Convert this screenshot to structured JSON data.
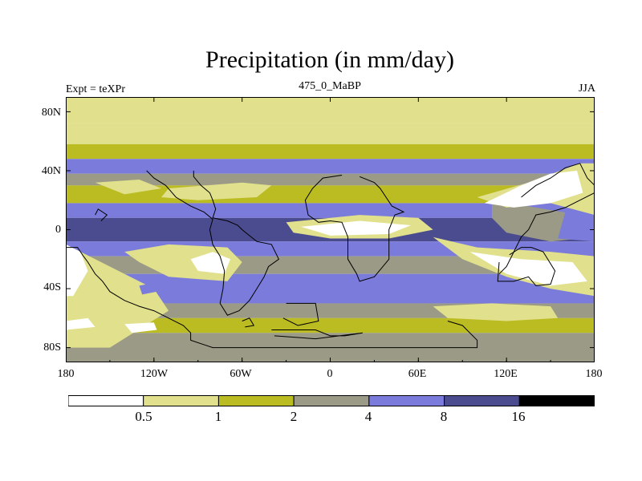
{
  "chart_data": {
    "type": "heatmap",
    "title": "Precipitation (in mm/day)",
    "left_label": "Expt = teXPr",
    "center_label": "475_0_MaBP",
    "right_label": "JJA",
    "x_ticks": [
      "180",
      "120W",
      "60W",
      "0",
      "60E",
      "120E",
      "180"
    ],
    "y_ticks": [
      "80N",
      "40N",
      "0",
      "40S",
      "80S"
    ],
    "xlim": [
      -180,
      180
    ],
    "ylim": [
      -90,
      90
    ],
    "levels": [
      "0.5",
      "1",
      "2",
      "4",
      "8",
      "16"
    ],
    "colors": [
      "#ffffff",
      "#e1e08c",
      "#bbbb22",
      "#9a9a86",
      "#7b7bdb",
      "#4b4b8f",
      "#000000"
    ],
    "zonal_bands": [
      {
        "lat_min": 72,
        "lat_max": 90,
        "class": 1
      },
      {
        "lat_min": 58,
        "lat_max": 72,
        "class": 1
      },
      {
        "lat_min": 48,
        "lat_max": 58,
        "class": 2
      },
      {
        "lat_min": 38,
        "lat_max": 48,
        "class": 4
      },
      {
        "lat_min": 30,
        "lat_max": 38,
        "class": 3
      },
      {
        "lat_min": 18,
        "lat_max": 30,
        "class": 2
      },
      {
        "lat_min": 8,
        "lat_max": 18,
        "class": 4
      },
      {
        "lat_min": -8,
        "lat_max": 8,
        "class": 5
      },
      {
        "lat_min": -18,
        "lat_max": -8,
        "class": 4
      },
      {
        "lat_min": -30,
        "lat_max": -18,
        "class": 3
      },
      {
        "lat_min": -50,
        "lat_max": -30,
        "class": 4
      },
      {
        "lat_min": -60,
        "lat_max": -50,
        "class": 3
      },
      {
        "lat_min": -70,
        "lat_max": -60,
        "class": 2
      },
      {
        "lat_min": -90,
        "lat_max": -70,
        "class": 3
      }
    ],
    "regions": [
      {
        "class": 1,
        "points": [
          [
            -180,
            -10
          ],
          [
            -150,
            -25
          ],
          [
            -120,
            -40
          ],
          [
            -110,
            -55
          ],
          [
            -150,
            -80
          ],
          [
            -180,
            -80
          ]
        ]
      },
      {
        "class": 0,
        "points": [
          [
            -180,
            -10
          ],
          [
            -170,
            -15
          ],
          [
            -165,
            -28
          ],
          [
            -175,
            -45
          ],
          [
            -180,
            -45
          ]
        ]
      },
      {
        "class": 0,
        "points": [
          [
            -180,
            -62
          ],
          [
            -165,
            -60
          ],
          [
            -160,
            -66
          ],
          [
            -180,
            -68
          ]
        ]
      },
      {
        "class": 1,
        "points": [
          [
            -140,
            -15
          ],
          [
            -110,
            -10
          ],
          [
            -70,
            -12
          ],
          [
            -60,
            -22
          ],
          [
            -70,
            -35
          ],
          [
            -110,
            -32
          ],
          [
            -130,
            -22
          ]
        ]
      },
      {
        "class": 0,
        "points": [
          [
            -95,
            -20
          ],
          [
            -80,
            -15
          ],
          [
            -68,
            -20
          ],
          [
            -72,
            -30
          ],
          [
            -90,
            -28
          ]
        ]
      },
      {
        "class": 1,
        "points": [
          [
            -30,
            5
          ],
          [
            20,
            10
          ],
          [
            60,
            8
          ],
          [
            70,
            0
          ],
          [
            40,
            -6
          ],
          [
            0,
            -6
          ],
          [
            -25,
            -2
          ]
        ]
      },
      {
        "class": 0,
        "points": [
          [
            -20,
            2
          ],
          [
            20,
            6
          ],
          [
            55,
            3
          ],
          [
            40,
            -3
          ],
          [
            0,
            -4
          ]
        ]
      },
      {
        "class": 3,
        "points": [
          [
            110,
            20
          ],
          [
            140,
            15
          ],
          [
            170,
            10
          ],
          [
            180,
            5
          ],
          [
            180,
            -5
          ],
          [
            150,
            -8
          ],
          [
            120,
            -2
          ],
          [
            110,
            8
          ]
        ]
      },
      {
        "class": 4,
        "points": [
          [
            160,
            12
          ],
          [
            180,
            12
          ],
          [
            180,
            -8
          ],
          [
            155,
            -6
          ]
        ]
      },
      {
        "class": 1,
        "points": [
          [
            100,
            22
          ],
          [
            135,
            32
          ],
          [
            170,
            45
          ],
          [
            180,
            45
          ],
          [
            180,
            10
          ],
          [
            150,
            18
          ],
          [
            120,
            15
          ]
        ]
      },
      {
        "class": 0,
        "points": [
          [
            105,
            18
          ],
          [
            130,
            30
          ],
          [
            150,
            38
          ],
          [
            168,
            40
          ],
          [
            172,
            25
          ],
          [
            150,
            18
          ],
          [
            125,
            15
          ]
        ]
      },
      {
        "class": 1,
        "points": [
          [
            70,
            -5
          ],
          [
            100,
            -12
          ],
          [
            150,
            -15
          ],
          [
            180,
            -18
          ],
          [
            180,
            -45
          ],
          [
            150,
            -40
          ],
          [
            120,
            -32
          ],
          [
            90,
            -20
          ]
        ]
      },
      {
        "class": 0,
        "points": [
          [
            95,
            -15
          ],
          [
            130,
            -20
          ],
          [
            165,
            -22
          ],
          [
            175,
            -35
          ],
          [
            150,
            -38
          ],
          [
            120,
            -30
          ]
        ]
      },
      {
        "class": 1,
        "points": [
          [
            -110,
            28
          ],
          [
            -60,
            32
          ],
          [
            -40,
            30
          ],
          [
            -50,
            22
          ],
          [
            -90,
            20
          ],
          [
            -115,
            22
          ]
        ]
      },
      {
        "class": 1,
        "points": [
          [
            -160,
            32
          ],
          [
            -130,
            34
          ],
          [
            -115,
            28
          ],
          [
            -140,
            24
          ]
        ]
      },
      {
        "class": 1,
        "points": [
          [
            70,
            -52
          ],
          [
            110,
            -50
          ],
          [
            150,
            -52
          ],
          [
            155,
            -60
          ],
          [
            120,
            -62
          ],
          [
            80,
            -60
          ]
        ]
      },
      {
        "class": 0,
        "points": [
          [
            -140,
            -64
          ],
          [
            -120,
            -63
          ],
          [
            -118,
            -68
          ],
          [
            -135,
            -70
          ]
        ]
      },
      {
        "class": 4,
        "points": [
          [
            -130,
            -38
          ],
          [
            -120,
            -36
          ],
          [
            -118,
            -42
          ],
          [
            -128,
            -44
          ]
        ]
      },
      {
        "class": 4,
        "points": [
          [
            50,
            -38
          ],
          [
            60,
            -36
          ],
          [
            62,
            -42
          ],
          [
            52,
            -44
          ]
        ]
      }
    ],
    "coastlines": [
      [
        [
          -93,
          40
        ],
        [
          -93,
          36
        ],
        [
          -88,
          30
        ],
        [
          -82,
          25
        ],
        [
          -80,
          20
        ],
        [
          -78,
          14
        ],
        [
          -80,
          8
        ],
        [
          -70,
          6
        ],
        [
          -63,
          3
        ],
        [
          -60,
          0
        ],
        [
          -55,
          -4
        ],
        [
          -50,
          -8
        ],
        [
          -40,
          -10
        ],
        [
          -35,
          -20
        ],
        [
          -42,
          -25
        ],
        [
          -45,
          -32
        ],
        [
          -50,
          -40
        ],
        [
          -55,
          -48
        ],
        [
          -62,
          -55
        ],
        [
          -70,
          -58
        ],
        [
          -75,
          -50
        ],
        [
          -73,
          -40
        ],
        [
          -72,
          -28
        ],
        [
          -75,
          -18
        ],
        [
          -80,
          -10
        ],
        [
          -82,
          0
        ],
        [
          -80,
          7
        ],
        [
          -86,
          12
        ],
        [
          -95,
          16
        ],
        [
          -105,
          22
        ],
        [
          -112,
          30
        ],
        [
          -120,
          35
        ],
        [
          -125,
          40
        ]
      ],
      [
        [
          20,
          36
        ],
        [
          30,
          32
        ],
        [
          34,
          28
        ],
        [
          42,
          16
        ],
        [
          50,
          12
        ],
        [
          44,
          10
        ],
        [
          40,
          0
        ],
        [
          40,
          -10
        ],
        [
          40,
          -20
        ],
        [
          35,
          -26
        ],
        [
          30,
          -32
        ],
        [
          20,
          -35
        ],
        [
          18,
          -30
        ],
        [
          12,
          -20
        ],
        [
          12,
          -5
        ],
        [
          8,
          5
        ],
        [
          0,
          6
        ],
        [
          -8,
          5
        ],
        [
          -15,
          10
        ],
        [
          -17,
          20
        ],
        [
          -12,
          28
        ],
        [
          -5,
          35
        ],
        [
          8,
          37
        ]
      ],
      [
        [
          115,
          -22
        ],
        [
          114,
          -35
        ],
        [
          125,
          -35
        ],
        [
          135,
          -32
        ],
        [
          140,
          -38
        ],
        [
          150,
          -37
        ],
        [
          153,
          -28
        ],
        [
          145,
          -15
        ],
        [
          137,
          -12
        ],
        [
          130,
          -12
        ],
        [
          122,
          -17
        ]
      ],
      [
        [
          -180,
          -12
        ],
        [
          -172,
          -12
        ],
        [
          -168,
          -18
        ],
        [
          -165,
          -22
        ],
        [
          -160,
          -30
        ],
        [
          -155,
          -35
        ],
        [
          -150,
          -42
        ],
        [
          -140,
          -48
        ],
        [
          -130,
          -52
        ],
        [
          -120,
          -55
        ],
        [
          -110,
          -60
        ],
        [
          -100,
          -65
        ],
        [
          -95,
          -70
        ],
        [
          -95,
          -75
        ],
        [
          -80,
          -80
        ],
        [
          -40,
          -80
        ],
        [
          0,
          -80
        ],
        [
          40,
          -80
        ],
        [
          80,
          -80
        ],
        [
          100,
          -80
        ],
        [
          100,
          -75
        ],
        [
          90,
          -65
        ],
        [
          80,
          -62
        ]
      ],
      [
        [
          130,
          22
        ],
        [
          140,
          30
        ],
        [
          150,
          35
        ],
        [
          160,
          42
        ],
        [
          170,
          45
        ],
        [
          175,
          35
        ],
        [
          180,
          30
        ],
        [
          180,
          25
        ],
        [
          170,
          20
        ],
        [
          160,
          15
        ],
        [
          150,
          12
        ],
        [
          140,
          10
        ],
        [
          135,
          0
        ],
        [
          130,
          -5
        ],
        [
          125,
          -15
        ],
        [
          120,
          -25
        ],
        [
          115,
          -30
        ]
      ],
      [
        [
          -160,
          10
        ],
        [
          -158,
          14
        ],
        [
          -152,
          10
        ],
        [
          -156,
          6
        ]
      ],
      [
        [
          -30,
          -50
        ],
        [
          -10,
          -50
        ],
        [
          -8,
          -62
        ],
        [
          -22,
          -65
        ],
        [
          -32,
          -60
        ]
      ],
      [
        [
          -40,
          -68
        ],
        [
          -10,
          -68
        ],
        [
          0,
          -72
        ],
        [
          10,
          -72
        ],
        [
          22,
          -70
        ],
        [
          -10,
          -74
        ],
        [
          -38,
          -72
        ]
      ],
      [
        [
          -60,
          -62
        ],
        [
          -55,
          -60
        ],
        [
          -52,
          -65
        ],
        [
          -58,
          -66
        ]
      ]
    ]
  }
}
